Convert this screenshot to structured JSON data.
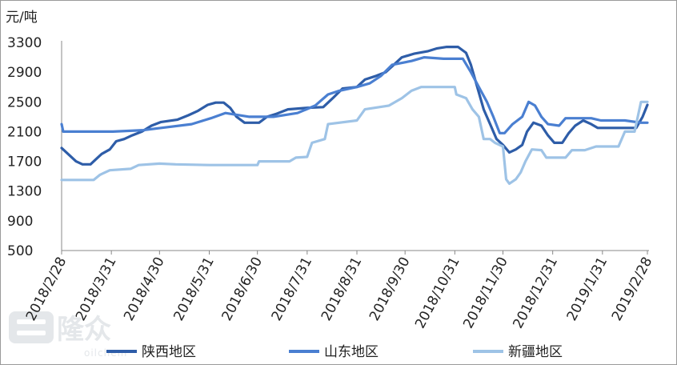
{
  "chart_data": {
    "type": "line",
    "unit_label": "元/吨",
    "ylim": [
      500,
      3300
    ],
    "yticks": [
      "500",
      "900",
      "1300",
      "1700",
      "2100",
      "2500",
      "2900",
      "3300"
    ],
    "xlim": [
      "2018-02-28",
      "2019-02-28"
    ],
    "xticks": [
      "2018/2/28",
      "2018/3/31",
      "2018/4/30",
      "2018/5/31",
      "2018/6/30",
      "2018/7/31",
      "2018/8/31",
      "2018/9/30",
      "2018/10/31",
      "2018/11/30",
      "2018/12/31",
      "2019/1/31",
      "2019/2/28"
    ],
    "grid": false,
    "legend_position": "bottom",
    "series": [
      {
        "name": "陕西地区",
        "color": "#2e5da8",
        "points": [
          [
            "2018-02-28",
            1880
          ],
          [
            "2018-03-04",
            1800
          ],
          [
            "2018-03-09",
            1700
          ],
          [
            "2018-03-13",
            1660
          ],
          [
            "2018-03-18",
            1660
          ],
          [
            "2018-03-21",
            1720
          ],
          [
            "2018-03-25",
            1800
          ],
          [
            "2018-03-30",
            1860
          ],
          [
            "2018-04-03",
            1970
          ],
          [
            "2018-04-08",
            2000
          ],
          [
            "2018-04-13",
            2050
          ],
          [
            "2018-04-19",
            2100
          ],
          [
            "2018-04-25",
            2180
          ],
          [
            "2018-05-01",
            2230
          ],
          [
            "2018-05-11",
            2260
          ],
          [
            "2018-05-18",
            2320
          ],
          [
            "2018-05-24",
            2380
          ],
          [
            "2018-05-30",
            2460
          ],
          [
            "2018-06-04",
            2490
          ],
          [
            "2018-06-09",
            2490
          ],
          [
            "2018-06-13",
            2420
          ],
          [
            "2018-06-17",
            2300
          ],
          [
            "2018-06-22",
            2220
          ],
          [
            "2018-07-01",
            2220
          ],
          [
            "2018-07-06",
            2300
          ],
          [
            "2018-07-12",
            2340
          ],
          [
            "2018-07-19",
            2400
          ],
          [
            "2018-07-31",
            2420
          ],
          [
            "2018-08-10",
            2430
          ],
          [
            "2018-08-16",
            2550
          ],
          [
            "2018-08-22",
            2680
          ],
          [
            "2018-08-31",
            2700
          ],
          [
            "2018-09-05",
            2800
          ],
          [
            "2018-09-12",
            2850
          ],
          [
            "2018-09-18",
            2900
          ],
          [
            "2018-09-23",
            3000
          ],
          [
            "2018-09-28",
            3100
          ],
          [
            "2018-10-06",
            3150
          ],
          [
            "2018-10-14",
            3180
          ],
          [
            "2018-10-20",
            3220
          ],
          [
            "2018-10-26",
            3240
          ],
          [
            "2018-11-02",
            3240
          ],
          [
            "2018-11-07",
            3160
          ],
          [
            "2018-11-10",
            3000
          ],
          [
            "2018-11-14",
            2700
          ],
          [
            "2018-11-18",
            2400
          ],
          [
            "2018-11-22",
            2200
          ],
          [
            "2018-11-26",
            2000
          ],
          [
            "2018-11-30",
            1920
          ],
          [
            "2018-12-04",
            1820
          ],
          [
            "2018-12-08",
            1860
          ],
          [
            "2018-12-12",
            1920
          ],
          [
            "2018-12-15",
            2100
          ],
          [
            "2018-12-19",
            2220
          ],
          [
            "2018-12-24",
            2180
          ],
          [
            "2018-12-28",
            2050
          ],
          [
            "2019-01-01",
            1950
          ],
          [
            "2019-01-06",
            1950
          ],
          [
            "2019-01-10",
            2080
          ],
          [
            "2019-01-14",
            2180
          ],
          [
            "2019-01-19",
            2250
          ],
          [
            "2019-01-24",
            2200
          ],
          [
            "2019-01-28",
            2150
          ],
          [
            "2019-02-10",
            2150
          ],
          [
            "2019-02-21",
            2150
          ],
          [
            "2019-02-25",
            2300
          ],
          [
            "2019-02-28",
            2460
          ]
        ]
      },
      {
        "name": "山东地区",
        "color": "#4a7fd1",
        "points": [
          [
            "2018-02-28",
            2200
          ],
          [
            "2018-03-01",
            2100
          ],
          [
            "2018-03-15",
            2100
          ],
          [
            "2018-04-01",
            2100
          ],
          [
            "2018-04-20",
            2120
          ],
          [
            "2018-05-01",
            2150
          ],
          [
            "2018-05-20",
            2200
          ],
          [
            "2018-06-01",
            2280
          ],
          [
            "2018-06-10",
            2350
          ],
          [
            "2018-06-25",
            2300
          ],
          [
            "2018-07-10",
            2300
          ],
          [
            "2018-07-25",
            2350
          ],
          [
            "2018-08-05",
            2450
          ],
          [
            "2018-08-13",
            2600
          ],
          [
            "2018-08-20",
            2650
          ],
          [
            "2018-08-31",
            2700
          ],
          [
            "2018-09-08",
            2750
          ],
          [
            "2018-09-15",
            2850
          ],
          [
            "2018-09-22",
            3000
          ],
          [
            "2018-10-04",
            3050
          ],
          [
            "2018-10-12",
            3100
          ],
          [
            "2018-10-24",
            3080
          ],
          [
            "2018-11-05",
            3080
          ],
          [
            "2018-11-10",
            2900
          ],
          [
            "2018-11-15",
            2700
          ],
          [
            "2018-11-20",
            2500
          ],
          [
            "2018-11-24",
            2300
          ],
          [
            "2018-11-28",
            2080
          ],
          [
            "2018-12-01",
            2080
          ],
          [
            "2018-12-06",
            2200
          ],
          [
            "2018-12-12",
            2300
          ],
          [
            "2018-12-16",
            2500
          ],
          [
            "2018-12-20",
            2450
          ],
          [
            "2018-12-24",
            2300
          ],
          [
            "2018-12-28",
            2200
          ],
          [
            "2019-01-04",
            2180
          ],
          [
            "2019-01-08",
            2280
          ],
          [
            "2019-01-16",
            2280
          ],
          [
            "2019-01-24",
            2280
          ],
          [
            "2019-01-30",
            2250
          ],
          [
            "2019-02-14",
            2250
          ],
          [
            "2019-02-24",
            2220
          ],
          [
            "2019-02-28",
            2220
          ]
        ]
      },
      {
        "name": "新疆地区",
        "color": "#9ec3e6",
        "points": [
          [
            "2018-02-28",
            1450
          ],
          [
            "2018-03-20",
            1450
          ],
          [
            "2018-03-24",
            1520
          ],
          [
            "2018-03-30",
            1580
          ],
          [
            "2018-04-12",
            1600
          ],
          [
            "2018-04-17",
            1650
          ],
          [
            "2018-04-30",
            1670
          ],
          [
            "2018-05-10",
            1660
          ],
          [
            "2018-05-31",
            1650
          ],
          [
            "2018-06-30",
            1650
          ],
          [
            "2018-07-01",
            1700
          ],
          [
            "2018-07-20",
            1700
          ],
          [
            "2018-07-24",
            1750
          ],
          [
            "2018-07-31",
            1760
          ],
          [
            "2018-08-03",
            1950
          ],
          [
            "2018-08-11",
            2000
          ],
          [
            "2018-08-13",
            2200
          ],
          [
            "2018-08-31",
            2250
          ],
          [
            "2018-09-05",
            2400
          ],
          [
            "2018-09-20",
            2450
          ],
          [
            "2018-09-28",
            2550
          ],
          [
            "2018-10-04",
            2650
          ],
          [
            "2018-10-10",
            2700
          ],
          [
            "2018-10-31",
            2700
          ],
          [
            "2018-11-01",
            2600
          ],
          [
            "2018-11-07",
            2550
          ],
          [
            "2018-11-11",
            2400
          ],
          [
            "2018-11-15",
            2300
          ],
          [
            "2018-11-18",
            2000
          ],
          [
            "2018-11-22",
            2000
          ],
          [
            "2018-11-25",
            1950
          ],
          [
            "2018-11-30",
            1900
          ],
          [
            "2018-12-02",
            1460
          ],
          [
            "2018-12-04",
            1400
          ],
          [
            "2018-12-08",
            1460
          ],
          [
            "2018-12-11",
            1550
          ],
          [
            "2018-12-14",
            1700
          ],
          [
            "2018-12-18",
            1860
          ],
          [
            "2018-12-24",
            1850
          ],
          [
            "2018-12-27",
            1750
          ],
          [
            "2019-01-08",
            1750
          ],
          [
            "2019-01-12",
            1850
          ],
          [
            "2019-01-20",
            1850
          ],
          [
            "2019-01-27",
            1900
          ],
          [
            "2019-02-10",
            1900
          ],
          [
            "2019-02-14",
            2100
          ],
          [
            "2019-02-20",
            2100
          ],
          [
            "2019-02-24",
            2500
          ],
          [
            "2019-02-28",
            2500
          ]
        ]
      }
    ]
  },
  "watermark": {
    "logo_text": "隆众",
    "brand_text": "oilchem"
  }
}
